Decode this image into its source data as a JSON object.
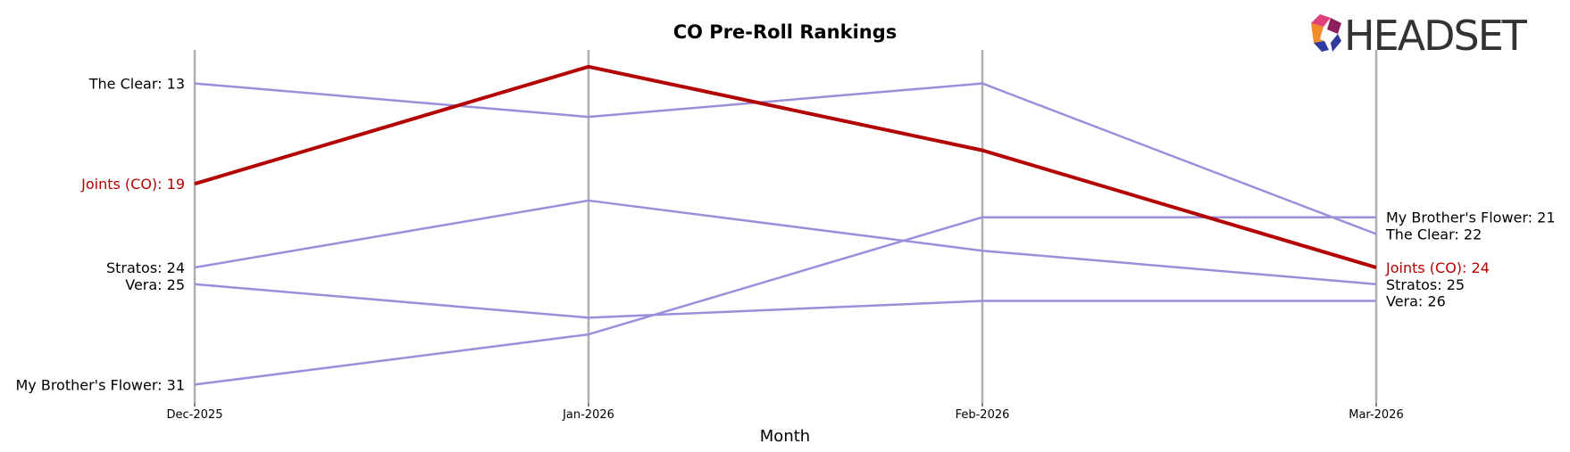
{
  "chart_data": {
    "type": "line",
    "title": "CO Pre-Roll Rankings",
    "xlabel": "Month",
    "ylabel": "",
    "x": [
      "Dec-2025",
      "Jan-2026",
      "Feb-2026",
      "Mar-2026"
    ],
    "y_inverted": true,
    "ylim": [
      11.5,
      31.5
    ],
    "grid": "vertical lines at each month",
    "series": [
      {
        "name": "The Clear",
        "values": [
          13,
          15,
          13,
          22
        ],
        "color": "#9b8fdb",
        "highlight": false
      },
      {
        "name": "Joints (CO)",
        "values": [
          19,
          12,
          17,
          24
        ],
        "color": "#b30000",
        "highlight": true
      },
      {
        "name": "Stratos",
        "values": [
          24,
          20,
          23,
          25
        ],
        "color": "#9b8fdb",
        "highlight": false
      },
      {
        "name": "Vera",
        "values": [
          25,
          27,
          26,
          26
        ],
        "color": "#9b8fdb",
        "highlight": false
      },
      {
        "name": "My Brother's Flower",
        "values": [
          31,
          28,
          21,
          21
        ],
        "color": "#9b8fdb",
        "highlight": false
      }
    ],
    "left_labels": [
      {
        "series": "The Clear",
        "text": "The Clear: 13"
      },
      {
        "series": "Joints (CO)",
        "text": "Joints (CO): 19"
      },
      {
        "series": "Stratos",
        "text": "Stratos: 24"
      },
      {
        "series": "Vera",
        "text": "Vera: 25"
      },
      {
        "series": "My Brother's Flower",
        "text": "My Brother's Flower: 31"
      }
    ],
    "right_labels": [
      {
        "series": "My Brother's Flower",
        "text": "My Brother's Flower: 21"
      },
      {
        "series": "The Clear",
        "text": "The Clear: 22"
      },
      {
        "series": "Joints (CO)",
        "text": "Joints (CO): 24"
      },
      {
        "series": "Stratos",
        "text": "Stratos: 25"
      },
      {
        "series": "Vera",
        "text": "Vera: 26"
      }
    ]
  },
  "logo": {
    "text": "HEADSET",
    "colors": [
      "#e0407a",
      "#f28c28",
      "#8e1f5c",
      "#2e3a9e"
    ]
  },
  "colors": {
    "highlight": "#b30000",
    "other": "#9b8fdb",
    "gridline": "#b0b0b0"
  }
}
